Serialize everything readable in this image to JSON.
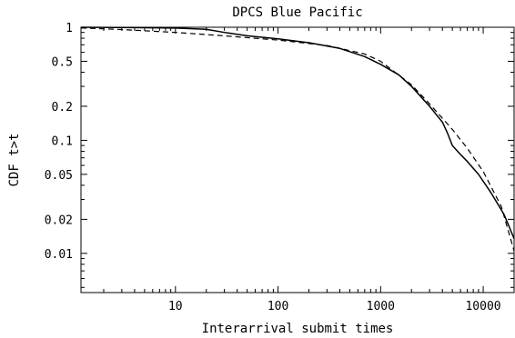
{
  "chart_data": {
    "type": "line",
    "title": "DPCS Blue Pacific",
    "xlabel": "Interarrival submit times",
    "ylabel": "CDF t>t",
    "x_scale": "log",
    "y_scale": "log",
    "xlim": [
      1.2,
      20000
    ],
    "ylim": [
      0.0045,
      1.0
    ],
    "grid": false,
    "x_ticks": [
      {
        "value": 10,
        "label": "10"
      },
      {
        "value": 100,
        "label": "100"
      },
      {
        "value": 1000,
        "label": "1000"
      },
      {
        "value": 10000,
        "label": "10000"
      }
    ],
    "y_ticks": [
      {
        "value": 1.0,
        "label": "1"
      },
      {
        "value": 0.5,
        "label": "0.5"
      },
      {
        "value": 0.2,
        "label": "0.2"
      },
      {
        "value": 0.1,
        "label": "0.1"
      },
      {
        "value": 0.05,
        "label": "0.05"
      },
      {
        "value": 0.02,
        "label": "0.02"
      },
      {
        "value": 0.01,
        "label": "0.01"
      }
    ],
    "series": [
      {
        "style": "solid",
        "x": [
          1.2,
          3,
          10,
          20,
          30,
          50,
          100,
          200,
          400,
          700,
          1000,
          1500,
          2000,
          3000,
          4000,
          4500,
          5000,
          6000,
          7000,
          9000,
          12000,
          16000,
          20000
        ],
        "y": [
          1.0,
          0.995,
          0.985,
          0.96,
          0.9,
          0.84,
          0.79,
          0.73,
          0.65,
          0.55,
          0.47,
          0.38,
          0.3,
          0.2,
          0.145,
          0.115,
          0.09,
          0.075,
          0.065,
          0.05,
          0.034,
          0.022,
          0.0135
        ]
      },
      {
        "style": "dashed",
        "x": [
          1.2,
          3,
          10,
          30,
          100,
          300,
          700,
          1000,
          2000,
          3000,
          5000,
          7000,
          10000,
          15000,
          20000
        ],
        "y": [
          0.985,
          0.955,
          0.9,
          0.84,
          0.77,
          0.69,
          0.58,
          0.5,
          0.31,
          0.21,
          0.125,
          0.085,
          0.053,
          0.026,
          0.0105
        ]
      }
    ]
  }
}
